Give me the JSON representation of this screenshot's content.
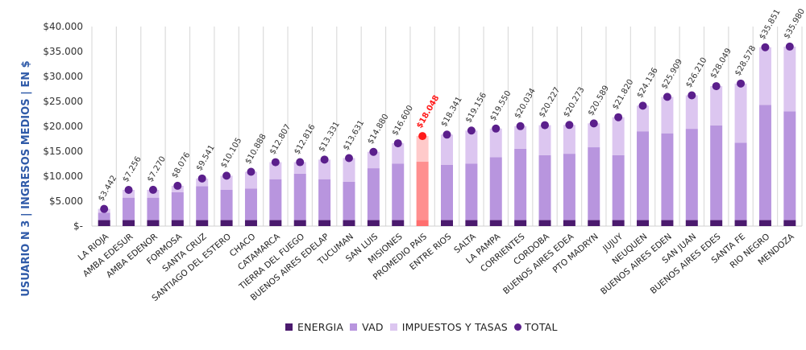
{
  "chart_data": {
    "type": "bar",
    "stacked": true,
    "title": "",
    "ylabel": "USUARIO N 3 | INGRESOS MEDIOS | EN $",
    "xlabel": "",
    "ylim": [
      0,
      40000
    ],
    "yticks": [
      0,
      5000,
      10000,
      15000,
      20000,
      25000,
      30000,
      35000,
      40000
    ],
    "ytick_labels": [
      "$-",
      "$5.000",
      "$10.000",
      "$15.000",
      "$20.000",
      "$25.000",
      "$30.000",
      "$35.000",
      "$40.000"
    ],
    "grid": "vertical separators between categories",
    "legend_position": "bottom",
    "highlight_category": "PROMEDIO PAIS",
    "colors": {
      "energia": "#4b1a6e",
      "vad": "#b895de",
      "impuestos": "#dcc6f0",
      "total": "#5b1f8c",
      "highlight_energia": "#ff6e6e",
      "highlight_vad": "#ff8f8f",
      "highlight_impuestos": "#ffcaca",
      "highlight_total": "#ff1a1a",
      "highlight_label": "#ff1a1a",
      "ylabel": "#2f5aa8"
    },
    "categories": [
      "LA RIOJA",
      "AMBA EDESUR",
      "AMBA EDENOR",
      "FORMOSA",
      "SANTA CRUZ",
      "SANTIAGO DEL ESTERO",
      "CHACO",
      "CATAMARCA",
      "TIERRA DEL FUEGO",
      "BUENOS AIRES EDELAP",
      "TUCUMAN",
      "SAN LUIS",
      "MISIONES",
      "PROMEDIO PAIS",
      "ENTRE RIOS",
      "SALTA",
      "LA PAMPA",
      "CORRIENTES",
      "CORDOBA",
      "BUENOS AIRES EDEA",
      "PTO MADRYN",
      "JUJUY",
      "NEUQUEN",
      "BUENOS AIRES EDEN",
      "SAN JUAN",
      "BUENOS AIRES EDES",
      "SANTA FE",
      "RIO NEGRO",
      "MENDOZA"
    ],
    "series": [
      {
        "name": "ENERGIA",
        "values": [
          1200,
          1200,
          1200,
          1200,
          1200,
          1200,
          1200,
          1200,
          1200,
          1200,
          1200,
          1200,
          1200,
          1200,
          1200,
          1200,
          1200,
          1200,
          1200,
          1200,
          1200,
          1200,
          1200,
          1200,
          1200,
          1200,
          1200,
          1200,
          1200
        ]
      },
      {
        "name": "VAD",
        "values": [
          1500,
          4500,
          4500,
          5600,
          6800,
          6100,
          6300,
          8200,
          9300,
          8200,
          7700,
          10400,
          11300,
          11700,
          11100,
          11300,
          12600,
          14300,
          13000,
          13300,
          14600,
          13000,
          17800,
          17400,
          18300,
          19000,
          15500,
          23100,
          21800
        ]
      },
      {
        "name": "IMPUESTOS Y TASAS",
        "values": [
          742,
          1556,
          1570,
          1276,
          1541,
          2805,
          3388,
          3407,
          2316,
          3931,
          4731,
          3280,
          4100,
          5148,
          6041,
          6656,
          5750,
          4534,
          6027,
          5773,
          4789,
          7620,
          5136,
          7309,
          6710,
          7849,
          11878,
          11551,
          12980
        ]
      },
      {
        "name": "TOTAL",
        "values": [
          3442,
          7256,
          7270,
          8076,
          9541,
          10105,
          10888,
          12807,
          12816,
          13331,
          13631,
          14880,
          16600,
          18048,
          18341,
          19156,
          19550,
          20034,
          20227,
          20273,
          20589,
          21820,
          24136,
          25909,
          26210,
          28049,
          28578,
          35851,
          35980
        ]
      }
    ],
    "data_labels": [
      "$3.442",
      "$7.256",
      "$7.270",
      "$8.076",
      "$9.541",
      "$10.105",
      "$10.888",
      "$12.807",
      "$12.816",
      "$13.331",
      "$13.631",
      "$14.880",
      "$16.600",
      "$18.048",
      "$18.341",
      "$19.156",
      "$19.550",
      "$20.034",
      "$20.227",
      "$20.273",
      "$20.589",
      "$21.820",
      "$24.136",
      "$25.909",
      "$26.210",
      "$28.049",
      "$28.578",
      "$35.851",
      "$35.980"
    ]
  },
  "legend": {
    "items": [
      {
        "label": "ENERGIA",
        "kind": "square",
        "color": "#4b1a6e"
      },
      {
        "label": "VAD",
        "kind": "square",
        "color": "#b895de"
      },
      {
        "label": "IMPUESTOS Y TASAS",
        "kind": "square",
        "color": "#dcc6f0"
      },
      {
        "label": "TOTAL",
        "kind": "dot",
        "color": "#5b1f8c"
      }
    ]
  }
}
